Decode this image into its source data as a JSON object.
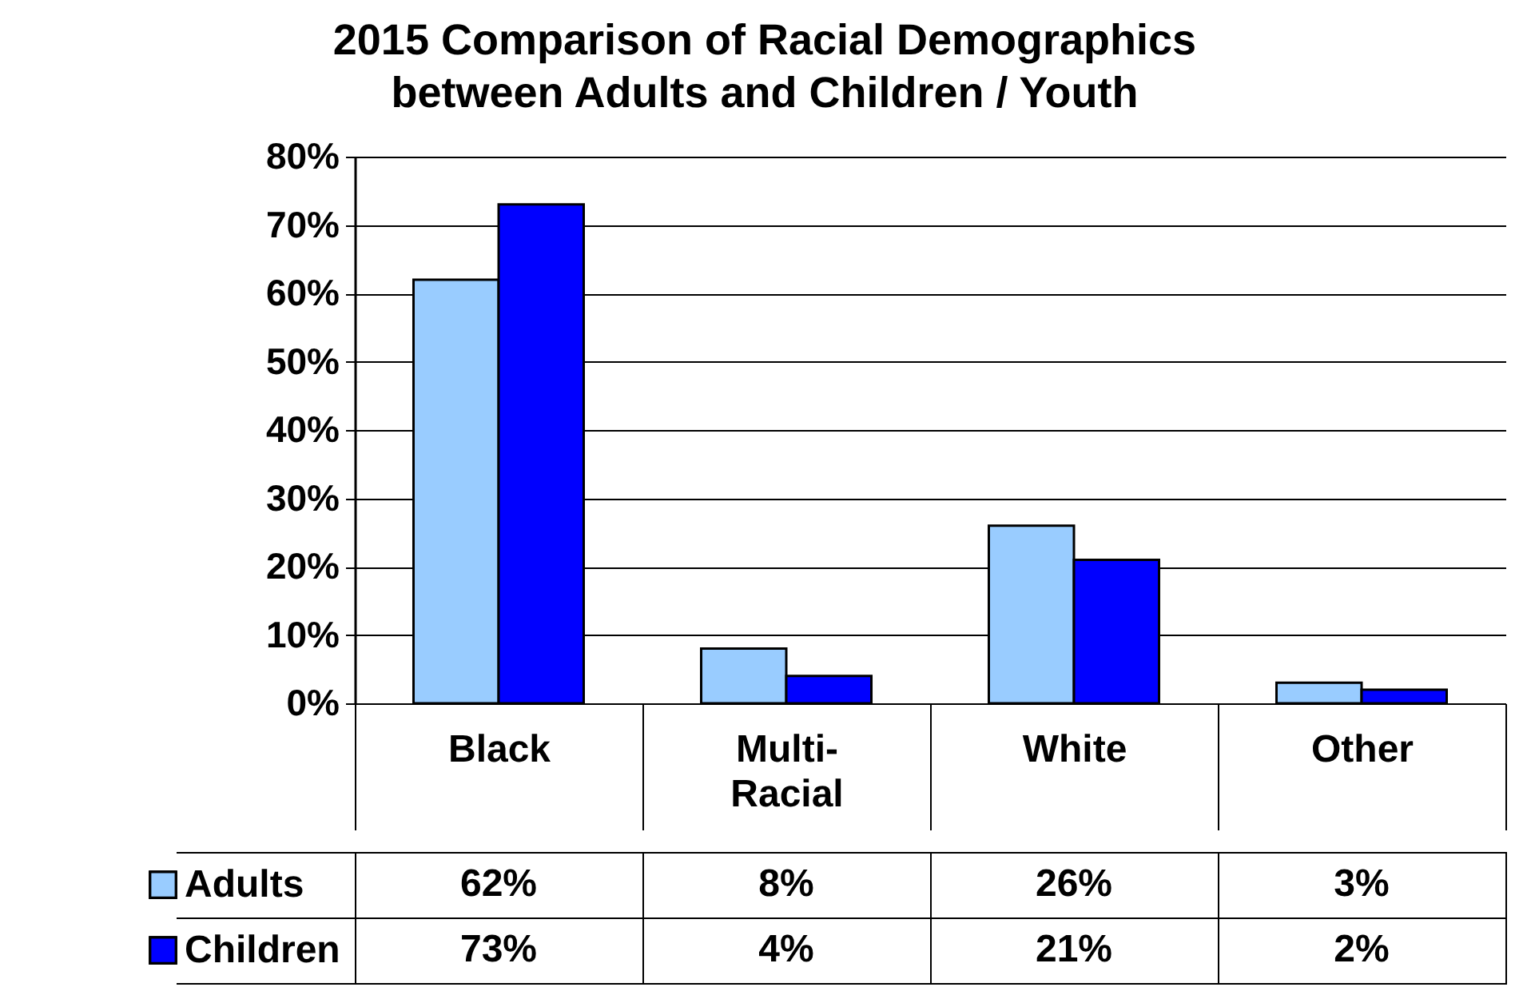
{
  "chart_data": {
    "type": "bar",
    "title": "2015 Comparison of Racial Demographics between Adults and Children / Youth",
    "categories": [
      "Black",
      "Multi-Racial",
      "White",
      "Other"
    ],
    "series": [
      {
        "name": "Adults",
        "color": "#99ccff",
        "values": [
          62,
          8,
          26,
          3
        ],
        "value_labels": [
          "62%",
          "8%",
          "26%",
          "3%"
        ]
      },
      {
        "name": "Children",
        "color": "#0000ff",
        "values": [
          73,
          4,
          21,
          2
        ],
        "value_labels": [
          "73%",
          "4%",
          "21%",
          "2%"
        ]
      }
    ],
    "ylim": [
      0,
      80
    ],
    "yticks": [
      {
        "value": 0,
        "label": "0%"
      },
      {
        "value": 10,
        "label": "10%"
      },
      {
        "value": 20,
        "label": "20%"
      },
      {
        "value": 30,
        "label": "30%"
      },
      {
        "value": 40,
        "label": "40%"
      },
      {
        "value": 50,
        "label": "50%"
      },
      {
        "value": 60,
        "label": "60%"
      },
      {
        "value": 70,
        "label": "70%"
      },
      {
        "value": 80,
        "label": "80%"
      }
    ],
    "grid": "y",
    "legend": "bottom left"
  }
}
